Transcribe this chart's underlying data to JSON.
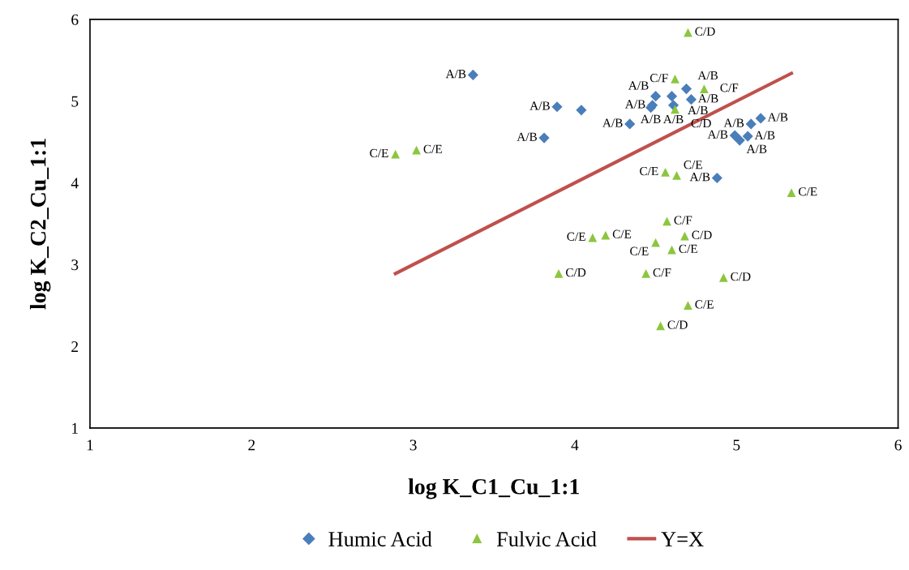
{
  "chart_data": {
    "type": "scatter",
    "xlabel": "log K_C1_Cu_1:1",
    "ylabel": "log K_C2_Cu_1:1",
    "xlim": [
      1,
      6
    ],
    "ylim": [
      1,
      6
    ],
    "xticks": [
      1,
      2,
      3,
      4,
      5,
      6
    ],
    "yticks": [
      1,
      2,
      3,
      4,
      5,
      6
    ],
    "grid": false,
    "legend": "bottom",
    "series": [
      {
        "name": "Humic Acid",
        "marker": "diamond",
        "color": "#4a7ebb",
        "x": [
          3.37,
          3.89,
          4.04,
          3.81,
          4.34,
          4.69,
          4.5,
          4.6,
          4.48,
          4.47,
          4.61,
          4.72,
          5.15,
          5.09,
          4.99,
          5.02,
          5.07,
          4.88
        ],
        "values": [
          5.32,
          4.93,
          4.89,
          4.55,
          4.72,
          5.15,
          5.06,
          5.06,
          4.95,
          4.92,
          4.95,
          5.02,
          4.79,
          4.72,
          4.58,
          4.52,
          4.57,
          4.06
        ],
        "value_labels": [
          "A/B",
          "A/B",
          null,
          "A/B",
          "A/B",
          "A/B",
          "A/B",
          "A/B",
          "A/B",
          "A/B",
          "A/B",
          "A/B",
          "A/B",
          "A/B",
          "A/B",
          "A/B",
          "A/B",
          "A/B"
        ]
      },
      {
        "name": "Fulvic Acid",
        "marker": "triangle",
        "color": "#8cc63f",
        "x": [
          2.89,
          3.02,
          4.7,
          4.62,
          4.8,
          4.62,
          4.56,
          4.63,
          5.34,
          4.11,
          4.19,
          3.9,
          4.57,
          4.68,
          4.5,
          4.6,
          4.44,
          4.92,
          4.7,
          4.53
        ],
        "values": [
          4.35,
          4.4,
          5.84,
          5.27,
          5.15,
          4.9,
          4.13,
          4.09,
          3.88,
          3.33,
          3.36,
          2.89,
          3.53,
          3.35,
          3.27,
          3.18,
          2.89,
          2.84,
          2.5,
          2.25
        ],
        "value_labels": [
          "C/E",
          "C/E",
          "C/D",
          "C/F",
          "C/F",
          "C/D",
          "C/E",
          "C/E",
          "C/E",
          "C/E",
          "C/E",
          "C/D",
          "C/F",
          "C/D",
          "C/E",
          "C/E",
          "C/F",
          "C/D",
          "C/E",
          "C/D"
        ]
      },
      {
        "name": "Y=X",
        "type": "line",
        "color": "#c0504d",
        "x": [
          2.89,
          5.34
        ],
        "values": [
          2.89,
          5.34
        ]
      }
    ]
  }
}
